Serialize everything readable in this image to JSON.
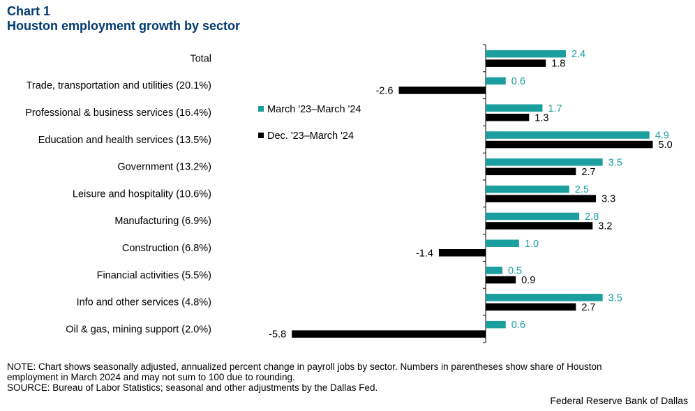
{
  "chart_data": {
    "type": "bar",
    "orientation": "horizontal",
    "title_line1": "Chart 1",
    "title_line2": "Houston employment growth by sector",
    "categories": [
      "Total",
      "Trade, transportation and utilities (20.1%)",
      "Professional & business services (16.4%)",
      "Education and health services (13.5%)",
      "Government (13.2%)",
      "Leisure and hospitality (10.6%)",
      "Manufacturing (6.9%)",
      "Construction (6.8%)",
      "Financial activities (5.5%)",
      "Info and other services (4.8%)",
      "Oil & gas, mining support (2.0%)"
    ],
    "series": [
      {
        "name": "March '23–March '24",
        "color": "#1a9e9e",
        "values": [
          2.4,
          0.6,
          1.7,
          4.9,
          3.5,
          2.5,
          2.8,
          1.0,
          0.5,
          3.5,
          0.6
        ],
        "labels": [
          "2.4",
          "0.6",
          "1.7",
          "4.9",
          "3.5",
          "2.5",
          "2.8",
          "1.0",
          "0.5",
          "3.5",
          "0.6"
        ]
      },
      {
        "name": "Dec. '23–March '24",
        "color": "#000000",
        "values": [
          1.8,
          -2.6,
          1.3,
          5.0,
          2.7,
          3.3,
          3.2,
          -1.4,
          0.9,
          2.7,
          -5.8
        ],
        "labels": [
          "1.8",
          "-2.6",
          "1.3",
          "5.0",
          "2.7",
          "3.3",
          "3.2",
          "-1.4",
          "0.9",
          "2.7",
          "-5.8"
        ]
      }
    ],
    "xlim": [
      -6,
      5
    ],
    "legend": "upper-middle"
  },
  "note_line1": "NOTE: Chart shows seasonally adjusted, annualized percent change in payroll jobs by sector. Numbers in parentheses show share of Houston",
  "note_line2": "employment in March 2024 and may not sum to 100 due to rounding.",
  "source": "SOURCE: Bureau of Labor Statistics; seasonal and other adjustments by the Dallas Fed.",
  "credit": "Federal Reserve Bank of Dallas"
}
